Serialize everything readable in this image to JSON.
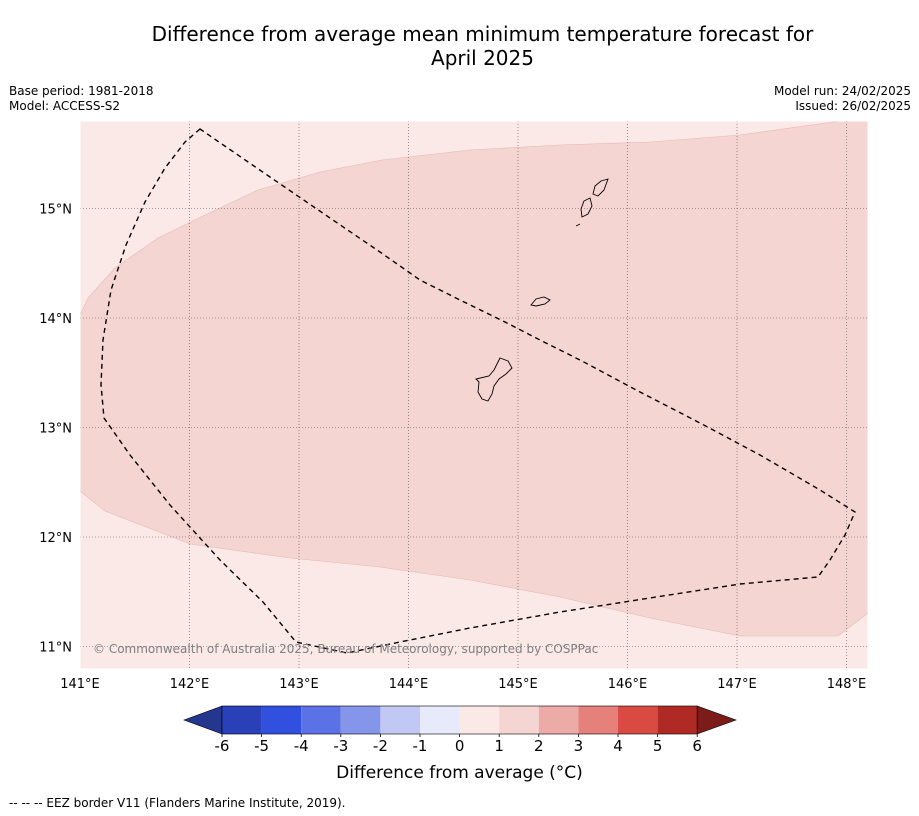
{
  "title_line1": "Difference from average mean minimum temperature forecast for",
  "title_line2": "April 2025",
  "meta_left": {
    "base_period": "Base period: 1981-2018",
    "model": "Model: ACCESS-S2"
  },
  "meta_right": {
    "model_run": "Model run: 24/02/2025",
    "issued": "Issued: 26/02/2025"
  },
  "map": {
    "lon_ticks": [
      "141°E",
      "142°E",
      "143°E",
      "144°E",
      "145°E",
      "146°E",
      "147°E",
      "148°E"
    ],
    "lat_ticks": [
      "15°N",
      "14°N",
      "13°N",
      "12°N",
      "11°N"
    ],
    "watermark": "© Commonwealth of Australia 2025, Bureau of Meteorology, supported by COSPPac",
    "background_color": "#fbe9e7",
    "anomaly_region_color": "#f5d5d2",
    "anomaly_region_range": "1 to 2"
  },
  "colorbar": {
    "tick_labels": [
      "-6",
      "-5",
      "-4",
      "-3",
      "-2",
      "-1",
      "0",
      "1",
      "2",
      "3",
      "4",
      "5",
      "6"
    ],
    "colors": [
      "#24378f",
      "#2a40b8",
      "#3150e0",
      "#5a72e6",
      "#8596ea",
      "#c0c8f3",
      "#e6eafb",
      "#fbe9e7",
      "#f5d5d2",
      "#edaba7",
      "#e5807b",
      "#d94b42",
      "#b02a25",
      "#7b1c1a"
    ],
    "label": "Difference from average (°C)"
  },
  "footnote": "--  --  -- EEZ border V11 (Flanders Marine Institute, 2019)."
}
